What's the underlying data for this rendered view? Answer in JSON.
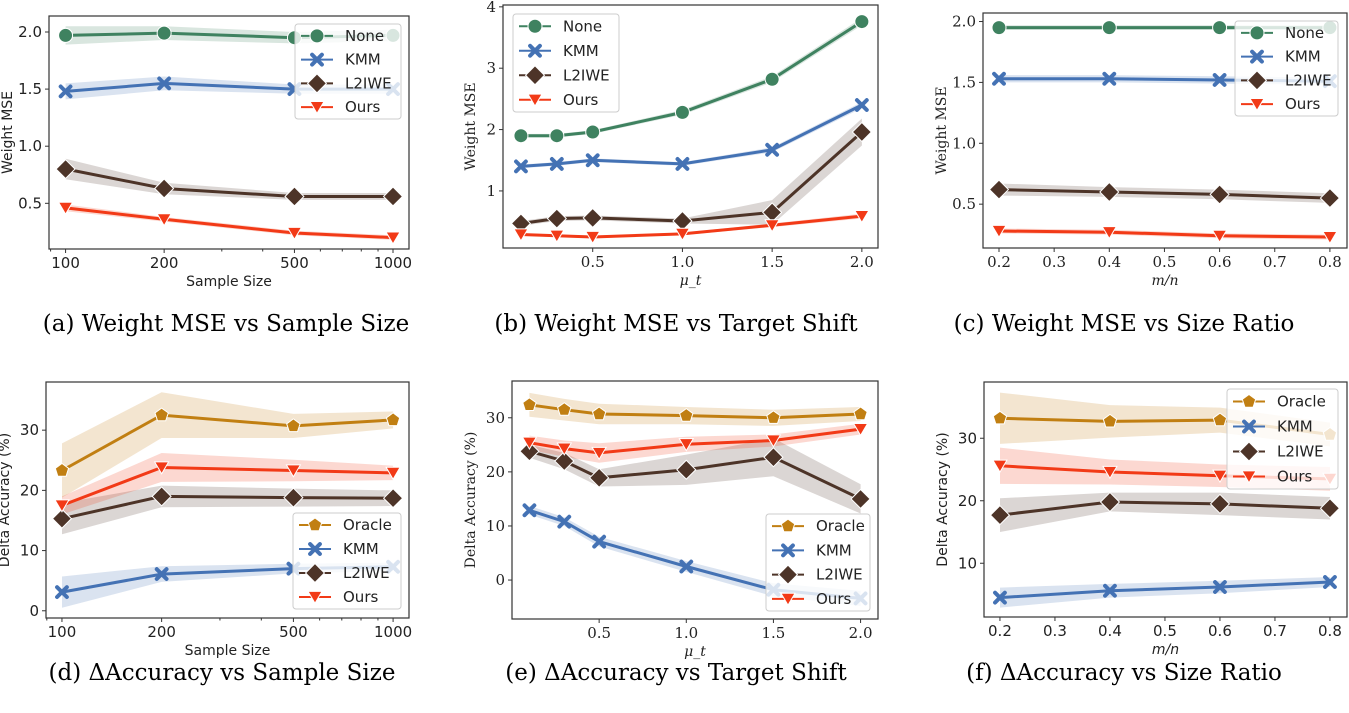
{
  "colors": {
    "None": "#3f8260",
    "KMM": "#4472b4",
    "L2IWE": "#4d3428",
    "Ours": "#f23a17",
    "Oracle": "#c17f12"
  },
  "markers": {
    "None": "circle",
    "KMM": "x",
    "L2IWE": "diamond",
    "Ours": "triangle-down",
    "Oracle": "pentagon"
  },
  "captions": [
    "(a) Weight MSE vs Sample Size",
    "(b) Weight MSE vs Target Shift",
    "(c) Weight MSE vs Size Ratio",
    "(d) ΔAccuracy vs Sample Size",
    "(e) ΔAccuracy vs Target Shift",
    "(f) ΔAccuracy vs Size Ratio"
  ],
  "chart_data": [
    {
      "type": "line",
      "xlabel": "Sample Size",
      "ylabel": "Weight MSE",
      "xscale": "log",
      "x": [
        100,
        200,
        500,
        1000
      ],
      "xticks": [
        100,
        200,
        500,
        1000
      ],
      "yticks": [
        0.5,
        1.0,
        1.5,
        2.0
      ],
      "xlim": [
        89,
        1119
      ],
      "ylim": [
        0.1,
        2.14
      ],
      "legend": "top-right",
      "grid": false,
      "series": [
        {
          "name": "None",
          "values": [
            1.97,
            1.99,
            1.95,
            1.97
          ],
          "band": [
            0.08,
            0.06,
            0.05,
            0.05
          ]
        },
        {
          "name": "KMM",
          "values": [
            1.48,
            1.55,
            1.5,
            1.5
          ],
          "band": [
            0.07,
            0.06,
            0.04,
            0.04
          ]
        },
        {
          "name": "L2IWE",
          "values": [
            0.8,
            0.63,
            0.56,
            0.56
          ],
          "band": [
            0.09,
            0.05,
            0.03,
            0.03
          ]
        },
        {
          "name": "Ours",
          "values": [
            0.46,
            0.36,
            0.24,
            0.2
          ],
          "band": [
            0.03,
            0.02,
            0.02,
            0.02
          ]
        }
      ]
    },
    {
      "type": "line",
      "xlabel": "μ_t",
      "ylabel": "Weight MSE",
      "xscale": "linear",
      "x": [
        0.1,
        0.3,
        0.5,
        1.0,
        1.5,
        2.0
      ],
      "xticks": [
        0.5,
        1.0,
        1.5,
        2.0
      ],
      "yticks": [
        1,
        2,
        3,
        4
      ],
      "xlim": [
        0.0,
        2.09
      ],
      "ylim": [
        0.07,
        4.03
      ],
      "legend": "top-left",
      "grid": false,
      "series": [
        {
          "name": "None",
          "values": [
            1.9,
            1.9,
            1.96,
            2.28,
            2.82,
            3.76
          ],
          "band": [
            0.03,
            0.03,
            0.03,
            0.04,
            0.05,
            0.06
          ]
        },
        {
          "name": "KMM",
          "values": [
            1.4,
            1.44,
            1.5,
            1.44,
            1.67,
            2.4
          ],
          "band": [
            0.03,
            0.03,
            0.03,
            0.03,
            0.04,
            0.05
          ]
        },
        {
          "name": "L2IWE",
          "values": [
            0.47,
            0.55,
            0.56,
            0.51,
            0.65,
            1.96
          ],
          "band": [
            0.04,
            0.04,
            0.04,
            0.04,
            0.2,
            0.22
          ]
        },
        {
          "name": "Ours",
          "values": [
            0.29,
            0.27,
            0.25,
            0.3,
            0.44,
            0.59
          ],
          "band": [
            0.02,
            0.02,
            0.02,
            0.02,
            0.03,
            0.04
          ]
        }
      ]
    },
    {
      "type": "line",
      "xlabel": "m/n",
      "ylabel": "Weight MSE",
      "xscale": "linear",
      "x": [
        0.2,
        0.4,
        0.6,
        0.8
      ],
      "xticks": [
        0.2,
        0.3,
        0.4,
        0.5,
        0.6,
        0.7,
        0.8
      ],
      "yticks": [
        0.5,
        1.0,
        1.5,
        2.0
      ],
      "xlim": [
        0.171,
        0.831
      ],
      "ylim": [
        0.14,
        2.07
      ],
      "legend": "top-right",
      "grid": false,
      "series": [
        {
          "name": "None",
          "values": [
            1.95,
            1.95,
            1.95,
            1.95
          ],
          "band": [
            0.02,
            0.02,
            0.02,
            0.02
          ]
        },
        {
          "name": "KMM",
          "values": [
            1.53,
            1.53,
            1.52,
            1.51
          ],
          "band": [
            0.03,
            0.03,
            0.03,
            0.03
          ]
        },
        {
          "name": "L2IWE",
          "values": [
            0.62,
            0.6,
            0.58,
            0.55
          ],
          "band": [
            0.05,
            0.04,
            0.04,
            0.04
          ]
        },
        {
          "name": "Ours",
          "values": [
            0.28,
            0.27,
            0.24,
            0.23
          ],
          "band": [
            0.02,
            0.02,
            0.02,
            0.02
          ]
        }
      ]
    },
    {
      "type": "line",
      "xlabel": "Sample Size",
      "ylabel": "Delta Accuracy (%)",
      "xscale": "log",
      "x": [
        100,
        200,
        500,
        1000
      ],
      "xticks": [
        100,
        200,
        500,
        1000
      ],
      "yticks": [
        0,
        10,
        20,
        30
      ],
      "xlim": [
        89.5,
        1117
      ],
      "ylim": [
        -1.2,
        38
      ],
      "legend": "lower-right",
      "grid": false,
      "series": [
        {
          "name": "Oracle",
          "values": [
            23.3,
            32.5,
            30.7,
            31.7
          ],
          "band": [
            4.5,
            3.8,
            2.0,
            1.4
          ]
        },
        {
          "name": "KMM",
          "values": [
            3.1,
            6.1,
            7.0,
            7.3
          ],
          "band": [
            2.6,
            1.3,
            0.8,
            0.7
          ]
        },
        {
          "name": "L2IWE",
          "values": [
            15.3,
            19.0,
            18.8,
            18.7
          ],
          "band": [
            2.6,
            1.8,
            1.5,
            1.3
          ]
        },
        {
          "name": "Ours",
          "values": [
            17.5,
            23.8,
            23.3,
            22.9
          ],
          "band": [
            1.5,
            2.4,
            1.8,
            1.2
          ]
        }
      ]
    },
    {
      "type": "line",
      "xlabel": "μ_t",
      "ylabel": "Delta Accuracy (%)",
      "xscale": "linear",
      "x": [
        0.1,
        0.3,
        0.5,
        1.0,
        1.5,
        2.0
      ],
      "xticks": [
        0.5,
        1.0,
        1.5,
        2.0
      ],
      "yticks": [
        0,
        10,
        20,
        30
      ],
      "xlim": [
        0.0,
        2.1
      ],
      "ylim": [
        -7.2,
        36.8
      ],
      "legend": "lower-right",
      "grid": false,
      "series": [
        {
          "name": "Oracle",
          "values": [
            32.4,
            31.5,
            30.7,
            30.4,
            30.0,
            30.7
          ],
          "band": [
            2.2,
            2.0,
            1.9,
            1.6,
            1.5,
            1.3
          ]
        },
        {
          "name": "KMM",
          "values": [
            12.9,
            10.8,
            7.1,
            2.5,
            -1.8,
            -3.4
          ],
          "band": [
            0.8,
            0.8,
            0.9,
            1.0,
            1.2,
            1.4
          ]
        },
        {
          "name": "L2IWE",
          "values": [
            23.8,
            22.0,
            18.9,
            20.4,
            22.7,
            15.0
          ],
          "band": [
            1.2,
            1.5,
            1.6,
            2.8,
            3.5,
            2.7
          ]
        },
        {
          "name": "Ours",
          "values": [
            25.4,
            24.3,
            23.5,
            25.1,
            25.8,
            27.9
          ],
          "band": [
            1.3,
            1.5,
            1.8,
            1.4,
            1.1,
            1.0
          ]
        }
      ]
    },
    {
      "type": "line",
      "xlabel": "m/n",
      "ylabel": "Delta Accuracy (%)",
      "xscale": "linear",
      "x": [
        0.2,
        0.4,
        0.6,
        0.8
      ],
      "xticks": [
        0.2,
        0.3,
        0.4,
        0.5,
        0.6,
        0.7,
        0.8
      ],
      "yticks": [
        10,
        20,
        30
      ],
      "xlim": [
        0.171,
        0.831
      ],
      "ylim": [
        1.4,
        39
      ],
      "legend": "top-right",
      "grid": false,
      "series": [
        {
          "name": "Oracle",
          "values": [
            33.2,
            32.7,
            32.9,
            30.6
          ],
          "band": [
            4.1,
            2.6,
            2.0,
            1.9
          ]
        },
        {
          "name": "KMM",
          "values": [
            4.5,
            5.6,
            6.2,
            7.0
          ],
          "band": [
            1.6,
            1.1,
            1.0,
            0.8
          ]
        },
        {
          "name": "L2IWE",
          "values": [
            17.7,
            19.8,
            19.5,
            18.8
          ],
          "band": [
            2.7,
            1.5,
            1.8,
            1.8
          ]
        },
        {
          "name": "Ours",
          "values": [
            25.6,
            24.6,
            24.0,
            23.5
          ],
          "band": [
            2.9,
            2.0,
            1.8,
            1.9
          ]
        }
      ]
    }
  ]
}
